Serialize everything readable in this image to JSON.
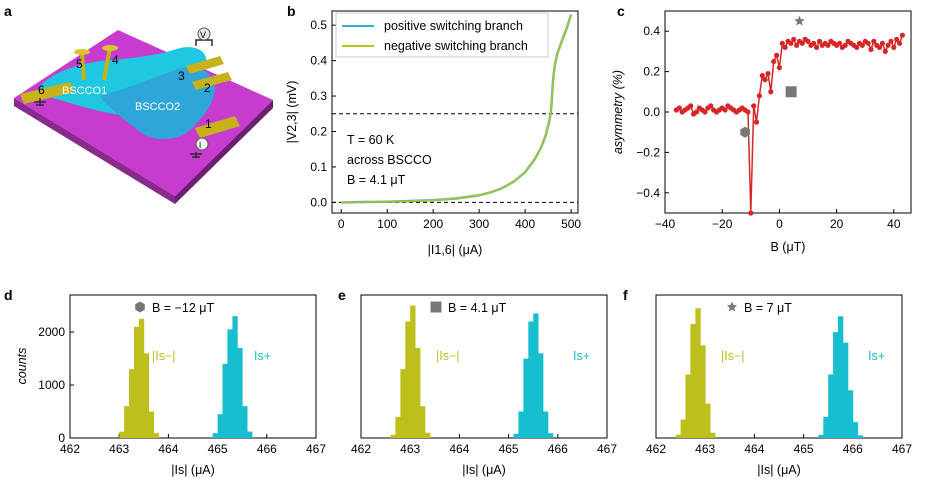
{
  "panel_labels": {
    "a": "a",
    "b": "b",
    "c": "c",
    "d": "d",
    "e": "e",
    "f": "f"
  },
  "device": {
    "flake1": "BSCCO1",
    "flake2": "BSCCO2",
    "contacts": [
      "1",
      "2",
      "3",
      "4",
      "5",
      "6"
    ],
    "voltage_symbol": "V",
    "current_symbol": "I"
  },
  "chart_data": [
    {
      "id": "b",
      "type": "line",
      "title": "",
      "xlabel": "|I1,6| (μA)",
      "ylabel": "|V2,3| (mV)",
      "xlim": [
        -20,
        515
      ],
      "ylim": [
        -0.03,
        0.54
      ],
      "xticks": [
        0,
        100,
        200,
        300,
        400,
        500
      ],
      "yticks": [
        0.0,
        0.1,
        0.2,
        0.3,
        0.4,
        0.5
      ],
      "x": [
        0,
        50,
        100,
        150,
        200,
        250,
        300,
        325,
        350,
        375,
        400,
        420,
        435,
        445,
        452,
        456,
        458,
        460,
        462,
        465,
        470,
        480,
        490,
        500
      ],
      "series": [
        {
          "name": "positive switching branch",
          "color": "#29b3d6",
          "values": [
            0.0,
            0.001,
            0.002,
            0.004,
            0.006,
            0.011,
            0.02,
            0.028,
            0.04,
            0.058,
            0.085,
            0.12,
            0.155,
            0.19,
            0.225,
            0.255,
            0.29,
            0.33,
            0.36,
            0.39,
            0.42,
            0.455,
            0.49,
            0.53
          ]
        },
        {
          "name": "negative switching branch",
          "color": "#bcbf1c",
          "values": [
            0.0,
            0.001,
            0.002,
            0.004,
            0.006,
            0.011,
            0.02,
            0.028,
            0.04,
            0.058,
            0.085,
            0.12,
            0.155,
            0.19,
            0.225,
            0.255,
            0.29,
            0.33,
            0.36,
            0.39,
            0.42,
            0.455,
            0.49,
            0.53
          ]
        }
      ],
      "hlines": [
        0.25,
        0.0
      ],
      "annotations": [
        "T = 60 K",
        "across BSCCO",
        "B = 4.1 μT"
      ],
      "legend": "top-left"
    },
    {
      "id": "c",
      "type": "line",
      "xlabel": "B (μT)",
      "ylabel": "asymmetry (%)",
      "xlim": [
        -40,
        46
      ],
      "ylim": [
        -0.5,
        0.5
      ],
      "xticks": [
        -40,
        -20,
        0,
        20,
        40
      ],
      "yticks": [
        -0.4,
        -0.2,
        0.0,
        0.2,
        0.4
      ],
      "color": "#d62728",
      "x": [
        -36,
        -35,
        -34,
        -33,
        -32,
        -31,
        -30,
        -29,
        -28,
        -27,
        -26,
        -25,
        -24,
        -23,
        -22,
        -21,
        -20,
        -19,
        -18,
        -17,
        -16,
        -15,
        -14,
        -13,
        -12,
        -11,
        -10,
        -9,
        -8,
        -7,
        -6,
        -5,
        -4,
        -3,
        -2,
        -1,
        0,
        1,
        2,
        3,
        4,
        5,
        6,
        7,
        8,
        9,
        10,
        11,
        12,
        13,
        14,
        15,
        16,
        17,
        18,
        19,
        20,
        21,
        22,
        23,
        24,
        25,
        26,
        27,
        28,
        29,
        30,
        31,
        32,
        33,
        34,
        35,
        36,
        37,
        38,
        39,
        40,
        41,
        42,
        43
      ],
      "values": [
        0.01,
        0.02,
        0.0,
        0.01,
        0.02,
        0.03,
        -0.01,
        0.0,
        0.02,
        0.01,
        0.0,
        0.02,
        0.03,
        0.01,
        0.0,
        0.01,
        0.02,
        0.01,
        0.03,
        0.02,
        0.01,
        0.0,
        0.01,
        0.02,
        0.01,
        0.0,
        -0.5,
        0.03,
        -0.05,
        0.08,
        0.18,
        0.16,
        0.19,
        0.1,
        0.25,
        0.28,
        0.22,
        0.34,
        0.32,
        0.35,
        0.34,
        0.36,
        0.33,
        0.35,
        0.34,
        0.36,
        0.35,
        0.33,
        0.34,
        0.32,
        0.35,
        0.33,
        0.34,
        0.33,
        0.35,
        0.34,
        0.33,
        0.34,
        0.32,
        0.33,
        0.35,
        0.34,
        0.33,
        0.32,
        0.34,
        0.33,
        0.35,
        0.34,
        0.31,
        0.35,
        0.33,
        0.32,
        0.34,
        0.3,
        0.33,
        0.35,
        0.32,
        0.36,
        0.34,
        0.38
      ],
      "markers": [
        {
          "shape": "hexagon",
          "x": -12,
          "y": -0.1,
          "color": "#777777"
        },
        {
          "shape": "square",
          "x": 4.1,
          "y": 0.1,
          "color": "#777777"
        },
        {
          "shape": "star",
          "x": 7,
          "y": 0.45,
          "color": "#777777"
        }
      ]
    },
    {
      "id": "d",
      "type": "bar",
      "legend_label": "B = −12 μT",
      "marker": "hexagon",
      "xlabel": "|Is| (μA)",
      "ylabel": "counts",
      "xlim": [
        462,
        467
      ],
      "ylim": [
        0,
        2700
      ],
      "xticks": [
        462,
        463,
        464,
        465,
        466,
        467
      ],
      "yticks": [
        0,
        1000,
        2000
      ],
      "bin_width": 0.1,
      "series": [
        {
          "name": "|Is−|",
          "color": "#bcbf1c",
          "centers": [
            463.05,
            463.15,
            463.25,
            463.35,
            463.45,
            463.55,
            463.65,
            463.75
          ],
          "values": [
            120,
            600,
            1300,
            2100,
            2250,
            1600,
            500,
            90
          ]
        },
        {
          "name": "Is+",
          "color": "#17becf",
          "centers": [
            464.95,
            465.05,
            465.15,
            465.25,
            465.35,
            465.45,
            465.55,
            465.65
          ],
          "values": [
            90,
            450,
            1400,
            2050,
            2300,
            1700,
            600,
            120
          ]
        }
      ]
    },
    {
      "id": "e",
      "type": "bar",
      "legend_label": "B = 4.1 μT",
      "marker": "square",
      "xlabel": "|Is| (μA)",
      "ylabel": "",
      "xlim": [
        462,
        467
      ],
      "ylim": [
        0,
        2700
      ],
      "xticks": [
        462,
        463,
        464,
        465,
        466,
        467
      ],
      "bin_width": 0.1,
      "series": [
        {
          "name": "|Is−|",
          "color": "#bcbf1c",
          "centers": [
            462.65,
            462.75,
            462.85,
            462.95,
            463.05,
            463.15,
            463.25,
            463.35
          ],
          "values": [
            60,
            400,
            1300,
            2200,
            2500,
            1700,
            600,
            100
          ]
        },
        {
          "name": "Is+",
          "color": "#17becf",
          "centers": [
            465.15,
            465.25,
            465.35,
            465.45,
            465.55,
            465.65,
            465.75,
            465.85
          ],
          "values": [
            80,
            500,
            1500,
            2200,
            2350,
            1600,
            500,
            90
          ]
        }
      ]
    },
    {
      "id": "f",
      "type": "bar",
      "legend_label": "B = 7 μT",
      "marker": "star",
      "xlabel": "|Is| (μA)",
      "ylabel": "",
      "xlim": [
        462,
        467
      ],
      "ylim": [
        0,
        2700
      ],
      "xticks": [
        462,
        463,
        464,
        465,
        466,
        467
      ],
      "bin_width": 0.1,
      "series": [
        {
          "name": "|Is−|",
          "color": "#bcbf1c",
          "centers": [
            462.45,
            462.55,
            462.65,
            462.75,
            462.85,
            462.95,
            463.05,
            463.15
          ],
          "values": [
            60,
            350,
            1200,
            2150,
            2450,
            1750,
            650,
            100
          ]
        },
        {
          "name": "Is+",
          "color": "#17becf",
          "centers": [
            465.35,
            465.45,
            465.55,
            465.65,
            465.75,
            465.85,
            465.95,
            466.05,
            466.15
          ],
          "values": [
            60,
            400,
            1200,
            2000,
            2300,
            1800,
            900,
            300,
            50
          ]
        }
      ]
    }
  ]
}
